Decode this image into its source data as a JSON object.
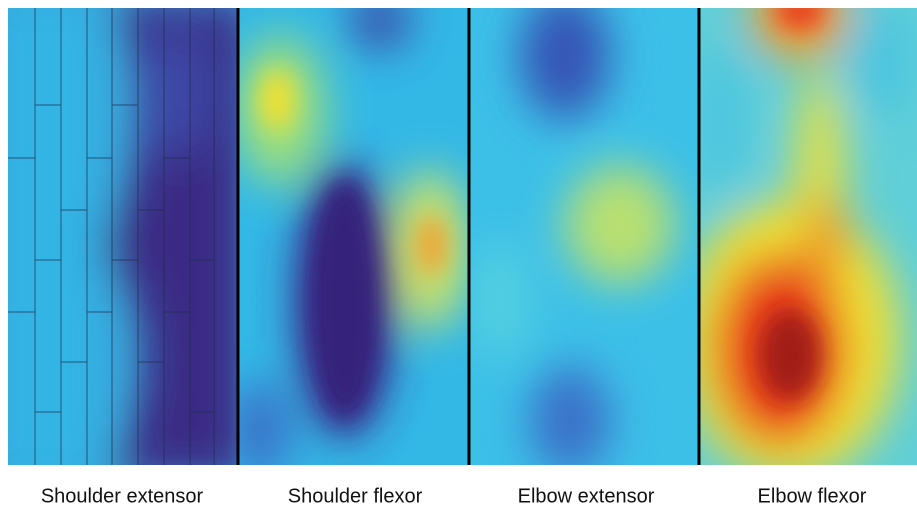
{
  "panels": [
    {
      "label": "Shoulder extensor"
    },
    {
      "label": "Shoulder flexor"
    },
    {
      "label": "Elbow extensor"
    },
    {
      "label": "Elbow flexor"
    }
  ]
}
